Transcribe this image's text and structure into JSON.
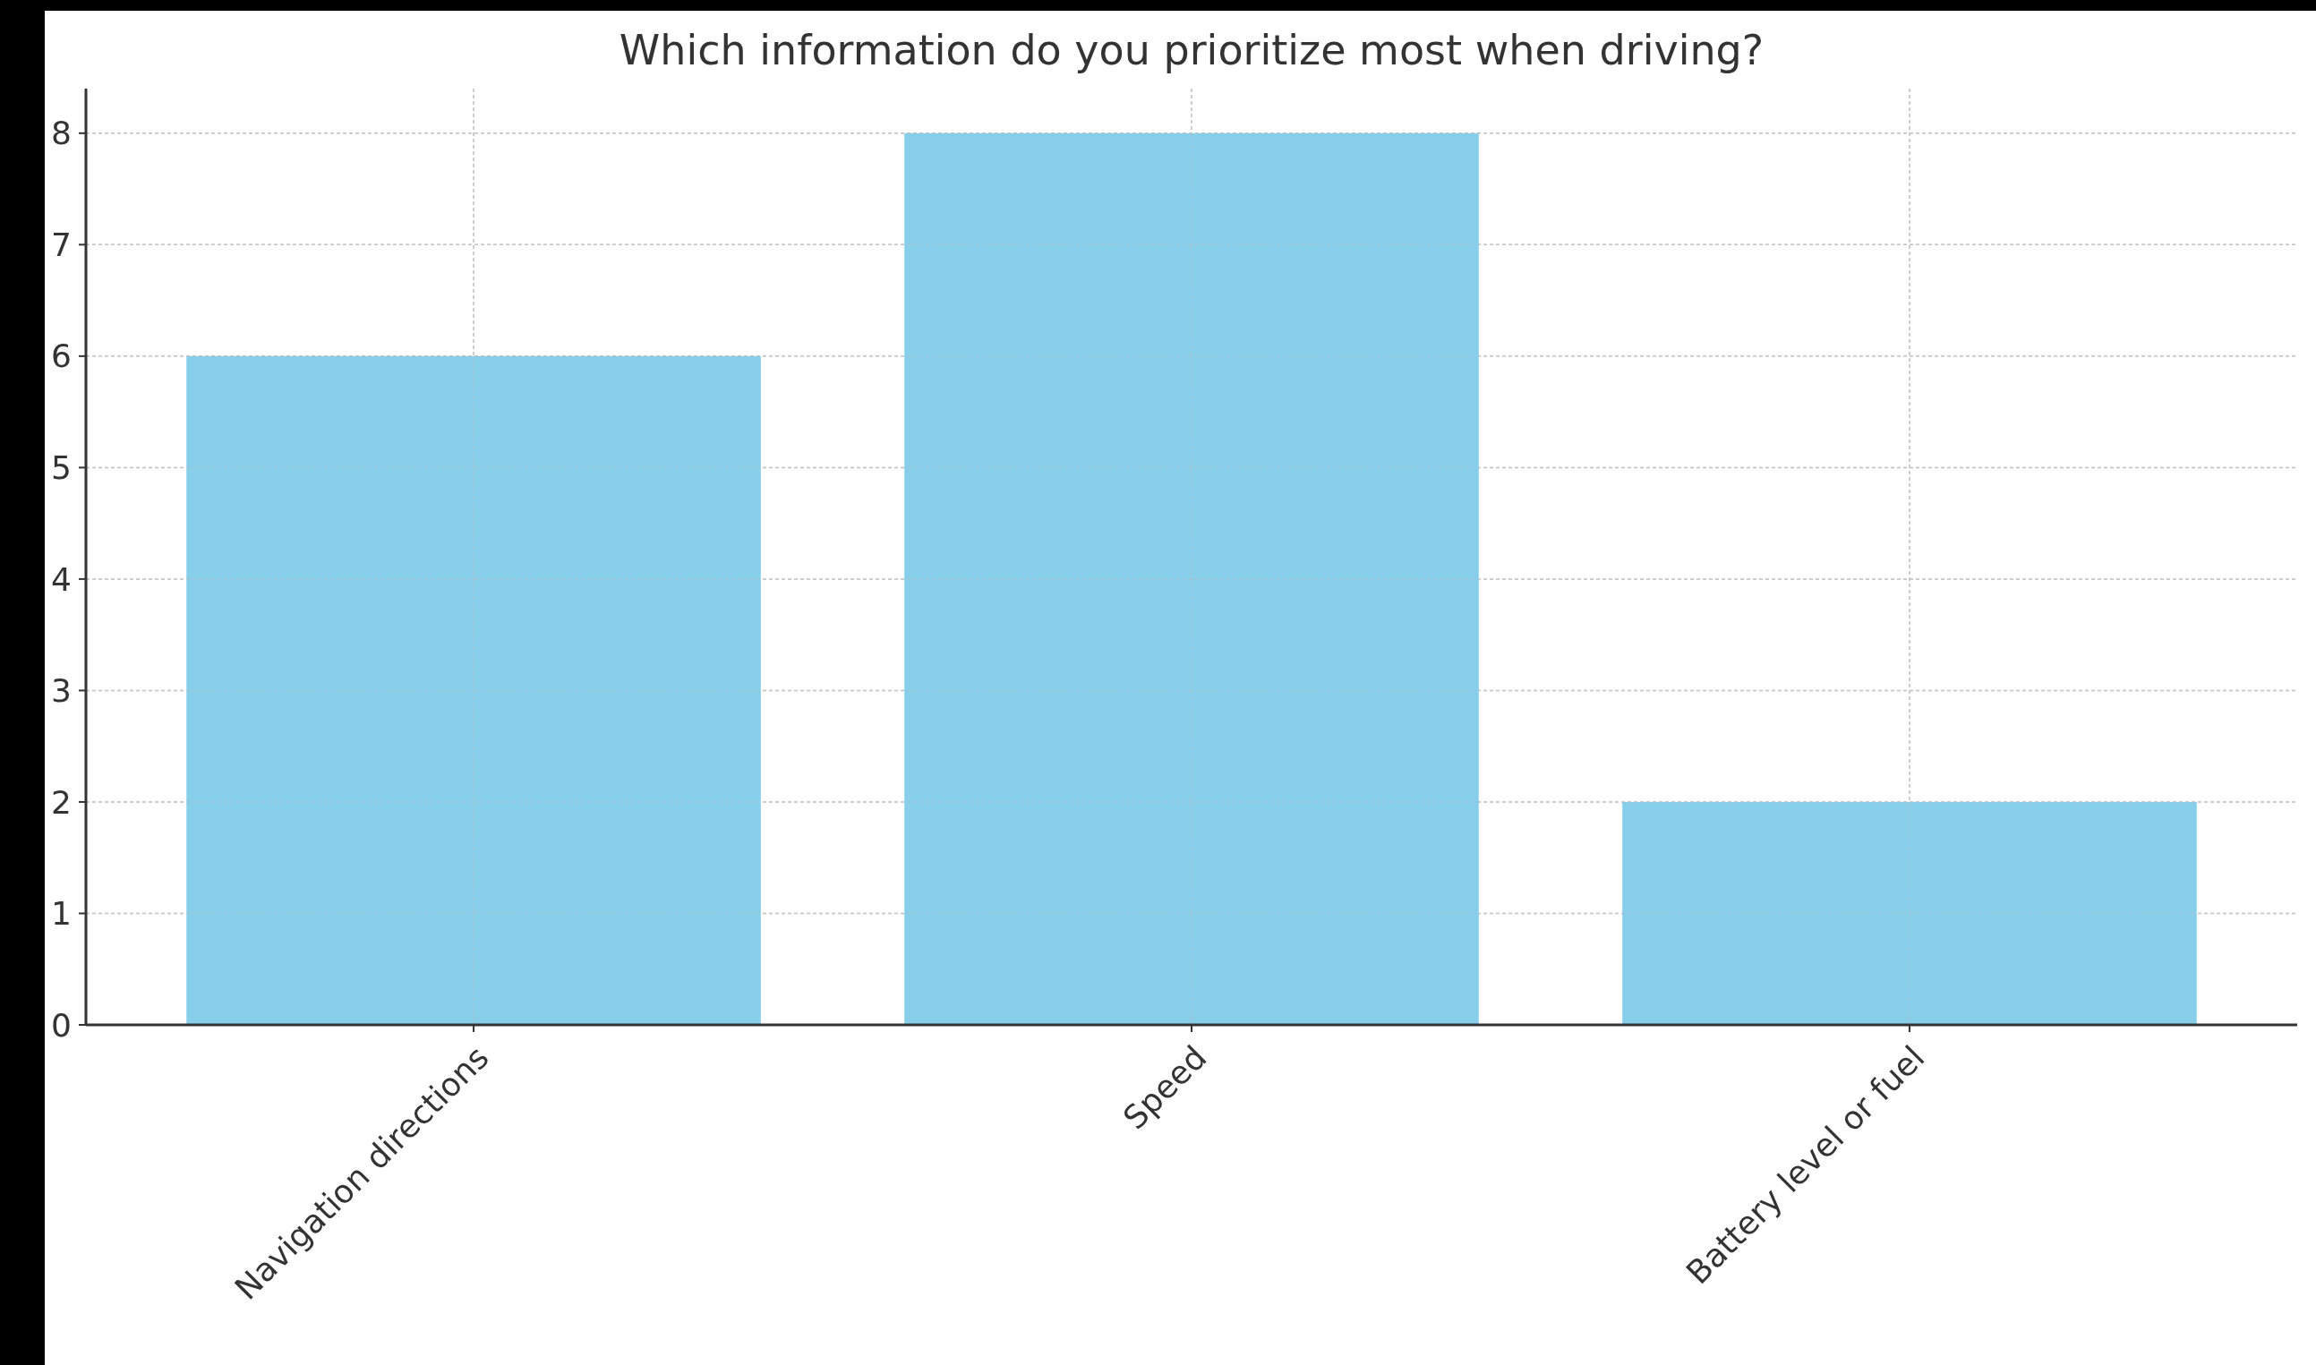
{
  "chart_data": {
    "type": "bar",
    "title": "Which information do you prioritize most when driving?",
    "categories": [
      "Navigation directions",
      "Speed",
      "Battery level or fuel"
    ],
    "values": [
      6,
      8,
      2
    ],
    "color": "#87ceeb",
    "ylim": [
      0,
      8.4
    ],
    "yticks": [
      0,
      1,
      2,
      3,
      4,
      5,
      6,
      7,
      8
    ],
    "grid": true
  }
}
